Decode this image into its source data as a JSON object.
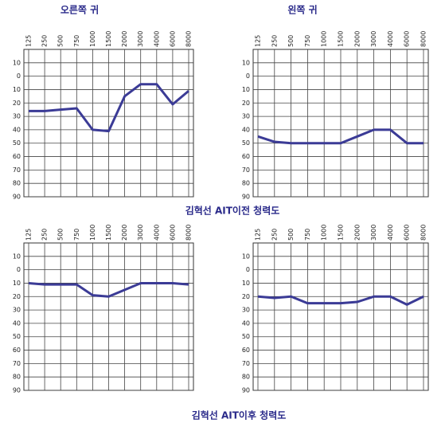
{
  "labels": [
    "오른쪽 귀",
    "왼쪽 귀"
  ],
  "captions": [
    "김혁선 AIT이전 청력도",
    "김혁선 AIT이후 청력도"
  ],
  "chart_data": [
    {
      "type": "line",
      "categories": [
        "125",
        "250",
        "500",
        "750",
        "1000",
        "1500",
        "2000",
        "3000",
        "4000",
        "6000",
        "8000"
      ],
      "values": [
        26,
        26,
        25,
        24,
        40,
        41,
        15,
        6,
        6,
        21,
        11
      ],
      "color": "#3b3b96",
      "ylim": [
        -20,
        90
      ],
      "y_inverted": true,
      "yticks": [
        {
          "value": -10,
          "label": "10"
        },
        0,
        10,
        20,
        30,
        40,
        50,
        60,
        70,
        80,
        90
      ],
      "grid": true
    },
    {
      "type": "line",
      "categories": [
        "125",
        "250",
        "500",
        "750",
        "1000",
        "1500",
        "2000",
        "3000",
        "4000",
        "6000",
        "8000"
      ],
      "values": [
        45,
        49,
        50,
        50,
        50,
        50,
        45,
        40,
        40,
        50,
        50
      ],
      "color": "#3b3b96",
      "ylim": [
        -20,
        90
      ],
      "y_inverted": true,
      "yticks": [
        {
          "value": -10,
          "label": "10"
        },
        0,
        10,
        20,
        30,
        40,
        50,
        60,
        70,
        80,
        90
      ],
      "grid": true
    },
    {
      "type": "line",
      "categories": [
        "125",
        "250",
        "500",
        "750",
        "1000",
        "1500",
        "2000",
        "3000",
        "4000",
        "6000",
        "8000"
      ],
      "values": [
        10,
        11,
        11,
        11,
        19,
        20,
        15,
        10,
        10,
        10,
        11
      ],
      "color": "#3b3b96",
      "ylim": [
        -20,
        90
      ],
      "y_inverted": true,
      "yticks": [
        {
          "value": -10,
          "label": "10"
        },
        0,
        10,
        20,
        30,
        40,
        50,
        60,
        70,
        80,
        90
      ],
      "grid": true
    },
    {
      "type": "line",
      "categories": [
        "125",
        "250",
        "500",
        "750",
        "1000",
        "1500",
        "2000",
        "3000",
        "4000",
        "6000",
        "8000"
      ],
      "values": [
        20,
        21,
        20,
        25,
        25,
        25,
        24,
        20,
        20,
        26,
        20
      ],
      "color": "#3b3b96",
      "ylim": [
        -20,
        90
      ],
      "y_inverted": true,
      "yticks": [
        {
          "value": -10,
          "label": "10"
        },
        0,
        10,
        20,
        30,
        40,
        50,
        60,
        70,
        80,
        90
      ],
      "grid": true
    }
  ]
}
